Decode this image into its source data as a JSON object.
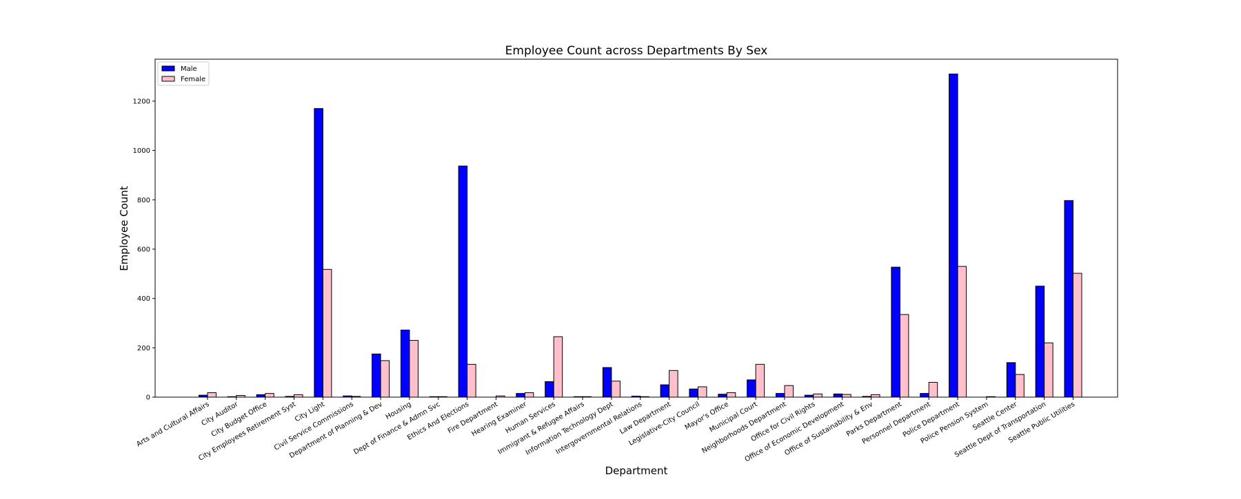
{
  "chart_data": {
    "type": "bar",
    "title": "Employee Count across Departments By Sex",
    "xlabel": "Department",
    "ylabel": "Employee Count",
    "ylim": [
      0,
      1370
    ],
    "yticks": [
      0,
      200,
      400,
      600,
      800,
      1000,
      1200
    ],
    "legend_position": "top-left",
    "grid": false,
    "categories": [
      "Arts and Cultural Affairs",
      "City Auditor",
      "City Budget Office",
      "City Employees Retirement Syst",
      "City Light",
      "Civil Service Commissions",
      "Department of Planning & Dev",
      "Housing",
      "Dept of Finance & Admn Svc",
      "Ethics And Elections",
      "Fire Department",
      "Hearing Examiner",
      "Human Services",
      "Immigrant & Refugee Affairs",
      "Information Technology Dept",
      "Intergovernmental Relations",
      "Law Department",
      "Legislative-City Council",
      "Mayor's Office",
      "Municipal Court",
      "Neighborhoods Department",
      "Office for Civil Rights",
      "Office of Economic Development",
      "Office of Sustainability & Env",
      "Parks Department",
      "Personnel Department",
      "Police Department",
      "Police Pension System",
      "Seattle Center",
      "Seattle Dept of Transportation",
      "Seattle Public Utilities"
    ],
    "series": [
      {
        "name": "Male",
        "color": "#0000ff",
        "values": [
          8,
          2,
          10,
          3,
          1170,
          5,
          175,
          272,
          2,
          937,
          0,
          15,
          63,
          2,
          120,
          4,
          50,
          33,
          12,
          70,
          15,
          8,
          13,
          3,
          527,
          15,
          1310,
          0,
          140,
          450,
          797
        ]
      },
      {
        "name": "Female",
        "color": "#ffc0cb",
        "values": [
          18,
          7,
          15,
          10,
          518,
          3,
          148,
          230,
          2,
          133,
          5,
          18,
          245,
          2,
          65,
          2,
          108,
          42,
          18,
          133,
          47,
          13,
          11,
          10,
          335,
          60,
          530,
          2,
          92,
          220,
          502
        ]
      }
    ]
  }
}
